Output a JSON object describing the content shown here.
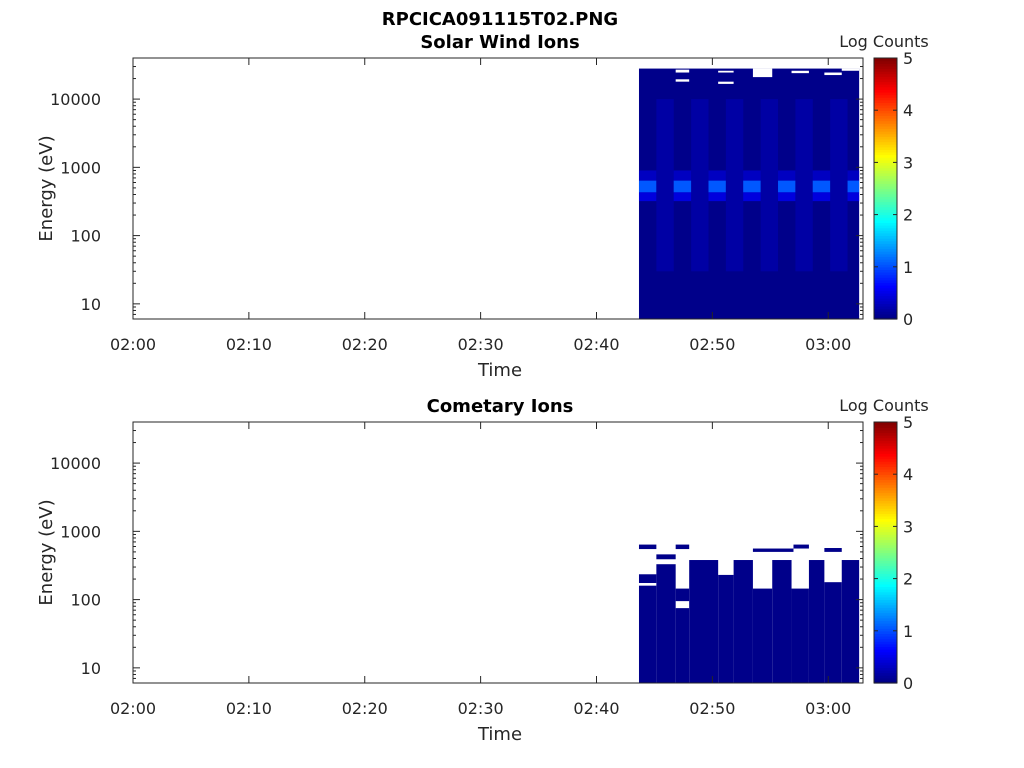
{
  "figure": {
    "title": "RPCICA091115T02.PNG"
  },
  "chart_data": [
    {
      "type": "heatmap",
      "title": "Solar Wind Ions",
      "xlabel": "Time",
      "ylabel": "Energy (eV)",
      "y_scale": "log",
      "x_ticks": [
        "02:00",
        "02:10",
        "02:20",
        "02:30",
        "02:40",
        "02:50",
        "03:00"
      ],
      "y_ticks": [
        "10",
        "100",
        "1000",
        "10000"
      ],
      "xlim": [
        "02:00",
        "03:03"
      ],
      "ylim": [
        6,
        40000
      ],
      "colorbar": {
        "label": "Log Counts",
        "range": [
          0,
          5
        ],
        "ticks": [
          "0",
          "1",
          "2",
          "3",
          "4",
          "5"
        ],
        "colormap": "jet"
      },
      "data_window": {
        "start": "02:43:40",
        "end": "03:02:40",
        "energy_top": 28000
      },
      "base_level": 0.05,
      "intensity_bands": [
        {
          "energy_range": [
            430,
            640
          ],
          "level": 1.15
        },
        {
          "energy_range": [
            320,
            430
          ],
          "level": 0.5
        },
        {
          "energy_range": [
            640,
            900
          ],
          "level": 0.35
        },
        {
          "energy_range": [
            30,
            10000
          ],
          "level": 0.18
        }
      ],
      "gaps": [
        {
          "time": [
            "02:46:50",
            "02:48:00"
          ],
          "energy": [
            24500,
            27000
          ]
        },
        {
          "time": [
            "02:46:50",
            "02:48:00"
          ],
          "energy": [
            18000,
            19500
          ]
        },
        {
          "time": [
            "02:50:30",
            "02:51:50"
          ],
          "energy": [
            24500,
            26000
          ]
        },
        {
          "time": [
            "02:50:30",
            "02:51:50"
          ],
          "energy": [
            16700,
            18000
          ]
        },
        {
          "time": [
            "02:53:30",
            "02:55:10"
          ],
          "energy": [
            21000,
            28000
          ]
        },
        {
          "time": [
            "02:56:50",
            "02:58:20"
          ],
          "energy": [
            24000,
            26000
          ]
        },
        {
          "time": [
            "02:59:40",
            "03:01:10"
          ],
          "energy": [
            22500,
            24500
          ]
        },
        {
          "time": [
            "03:01:10",
            "03:02:40"
          ],
          "energy": [
            26000,
            28000
          ]
        }
      ]
    },
    {
      "type": "heatmap",
      "title": "Cometary Ions",
      "xlabel": "Time",
      "ylabel": "Energy (eV)",
      "y_scale": "log",
      "x_ticks": [
        "02:00",
        "02:10",
        "02:20",
        "02:30",
        "02:40",
        "02:50",
        "03:00"
      ],
      "y_ticks": [
        "10",
        "100",
        "1000",
        "10000"
      ],
      "xlim": [
        "02:00",
        "03:03"
      ],
      "ylim": [
        6,
        40000
      ],
      "colorbar": {
        "label": "Log Counts",
        "range": [
          0,
          5
        ],
        "ticks": [
          "0",
          "1",
          "2",
          "3",
          "4",
          "5"
        ],
        "colormap": "jet"
      },
      "base_level": 0.05,
      "blocks": [
        {
          "time": [
            "02:43:40",
            "02:45:10"
          ],
          "energy": [
            6,
            160
          ]
        },
        {
          "time": [
            "02:43:40",
            "02:45:10"
          ],
          "energy": [
            175,
            235
          ]
        },
        {
          "time": [
            "02:43:40",
            "02:45:10"
          ],
          "energy": [
            550,
            640
          ]
        },
        {
          "time": [
            "02:45:10",
            "02:46:50"
          ],
          "energy": [
            6,
            330
          ]
        },
        {
          "time": [
            "02:45:10",
            "02:46:50"
          ],
          "energy": [
            390,
            460
          ]
        },
        {
          "time": [
            "02:46:50",
            "02:48:00"
          ],
          "energy": [
            6,
            75
          ]
        },
        {
          "time": [
            "02:46:50",
            "02:48:00"
          ],
          "energy": [
            95,
            145
          ]
        },
        {
          "time": [
            "02:46:50",
            "02:48:00"
          ],
          "energy": [
            550,
            640
          ]
        },
        {
          "time": [
            "02:48:00",
            "02:50:30"
          ],
          "energy": [
            6,
            380
          ]
        },
        {
          "time": [
            "02:50:30",
            "02:51:50"
          ],
          "energy": [
            6,
            230
          ]
        },
        {
          "time": [
            "02:51:50",
            "02:53:30"
          ],
          "energy": [
            6,
            380
          ]
        },
        {
          "time": [
            "02:53:30",
            "02:55:10"
          ],
          "energy": [
            6,
            145
          ]
        },
        {
          "time": [
            "02:53:30",
            "02:57:00"
          ],
          "energy": [
            500,
            560
          ]
        },
        {
          "time": [
            "02:55:10",
            "02:56:50"
          ],
          "energy": [
            6,
            380
          ]
        },
        {
          "time": [
            "02:56:50",
            "02:58:20"
          ],
          "energy": [
            6,
            145
          ]
        },
        {
          "time": [
            "02:57:00",
            "02:58:20"
          ],
          "energy": [
            560,
            640
          ]
        },
        {
          "time": [
            "02:58:20",
            "02:59:40"
          ],
          "energy": [
            6,
            380
          ]
        },
        {
          "time": [
            "02:59:40",
            "03:01:10"
          ],
          "energy": [
            6,
            180
          ]
        },
        {
          "time": [
            "02:59:40",
            "03:01:10"
          ],
          "energy": [
            500,
            570
          ]
        },
        {
          "time": [
            "03:01:10",
            "03:02:40"
          ],
          "energy": [
            6,
            380
          ]
        }
      ]
    }
  ]
}
